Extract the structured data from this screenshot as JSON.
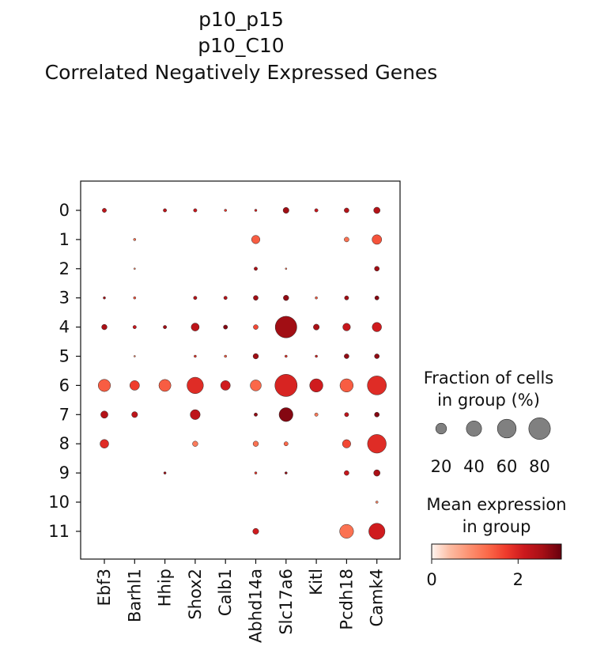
{
  "chart_data": {
    "type": "dotplot",
    "title": [
      "p10_p15",
      "p10_C10",
      "Correlated Negatively Expressed Genes"
    ],
    "xlabel": "",
    "ylabel": "",
    "genes": [
      "Ebf3",
      "Barhl1",
      "Hhip",
      "Shox2",
      "Calb1",
      "Abhd14a",
      "Slc17a6",
      "Kitl",
      "Pcdh18",
      "Camk4"
    ],
    "groups": [
      "0",
      "1",
      "2",
      "3",
      "4",
      "5",
      "6",
      "7",
      "8",
      "9",
      "10",
      "11"
    ],
    "fraction_pct": [
      [
        3,
        0,
        2,
        2,
        1,
        1,
        6,
        2,
        4,
        7
      ],
      [
        0,
        1,
        0,
        0,
        0,
        12,
        0,
        0,
        4,
        16
      ],
      [
        0,
        0.5,
        0,
        0,
        0,
        2,
        0.5,
        0,
        0,
        4
      ],
      [
        1,
        1,
        0,
        2,
        2,
        4,
        5,
        1,
        3,
        3
      ],
      [
        5,
        2,
        2,
        11,
        3,
        4,
        80,
        6,
        10,
        15
      ],
      [
        0,
        0.5,
        0,
        1,
        1,
        5,
        1,
        1,
        4,
        4
      ],
      [
        26,
        16,
        25,
        46,
        16,
        21,
        85,
        30,
        30,
        62
      ],
      [
        9,
        6,
        0,
        17,
        0,
        2,
        33,
        2,
        3,
        4
      ],
      [
        13,
        0,
        0,
        5,
        0,
        5,
        3,
        0,
        12,
        60
      ],
      [
        0,
        0,
        1,
        0,
        0,
        1,
        1,
        0,
        4,
        7
      ],
      [
        0,
        0,
        0,
        0,
        0,
        0,
        0,
        0,
        0,
        1
      ],
      [
        0,
        0,
        0,
        0,
        0,
        6,
        0,
        0,
        33,
        45
      ]
    ],
    "mean_expression": [
      [
        2.3,
        0,
        2.3,
        2.2,
        1.8,
        2.0,
        2.6,
        2.2,
        2.4,
        2.4
      ],
      [
        0,
        1.2,
        0,
        0,
        0,
        1.4,
        0,
        0,
        1.2,
        1.5
      ],
      [
        0,
        1.0,
        0,
        0,
        0,
        2.5,
        1.2,
        0,
        0,
        2.6
      ],
      [
        2.5,
        1.5,
        0,
        2.4,
        2.4,
        2.6,
        2.7,
        1.4,
        2.6,
        2.8
      ],
      [
        2.5,
        2.2,
        2.6,
        2.3,
        2.8,
        1.6,
        2.6,
        2.5,
        2.2,
        2.1
      ],
      [
        0,
        1.0,
        0,
        1.8,
        1.4,
        2.6,
        1.8,
        2.0,
        2.7,
        2.7
      ],
      [
        1.4,
        1.7,
        1.4,
        1.9,
        2.1,
        1.3,
        2.0,
        2.1,
        1.4,
        1.9
      ],
      [
        2.4,
        2.3,
        0,
        2.3,
        0,
        2.7,
        2.8,
        1.1,
        2.3,
        2.8
      ],
      [
        1.9,
        0,
        0,
        1.1,
        0,
        1.2,
        1.3,
        0,
        1.6,
        1.9
      ],
      [
        0,
        0,
        2.6,
        0,
        0,
        1.8,
        2.7,
        0,
        2.2,
        2.5
      ],
      [
        0,
        0,
        0,
        0,
        0,
        0,
        0,
        0,
        0,
        1.0
      ],
      [
        0,
        0,
        0,
        0,
        0,
        2.1,
        0,
        0,
        1.2,
        2.1
      ]
    ],
    "size_legend": {
      "title": [
        "Fraction of cells",
        "in group (%)"
      ],
      "values": [
        20,
        40,
        60,
        80
      ]
    },
    "color_legend": {
      "title": [
        "Mean expression",
        "in group"
      ],
      "ticks": [
        0,
        2
      ],
      "range": [
        0,
        3
      ],
      "colors": [
        "#fff5f0",
        "#fcbba1",
        "#fc9272",
        "#fb6a4a",
        "#ef3b2c",
        "#cb181d",
        "#a50f15",
        "#67000d"
      ]
    }
  }
}
